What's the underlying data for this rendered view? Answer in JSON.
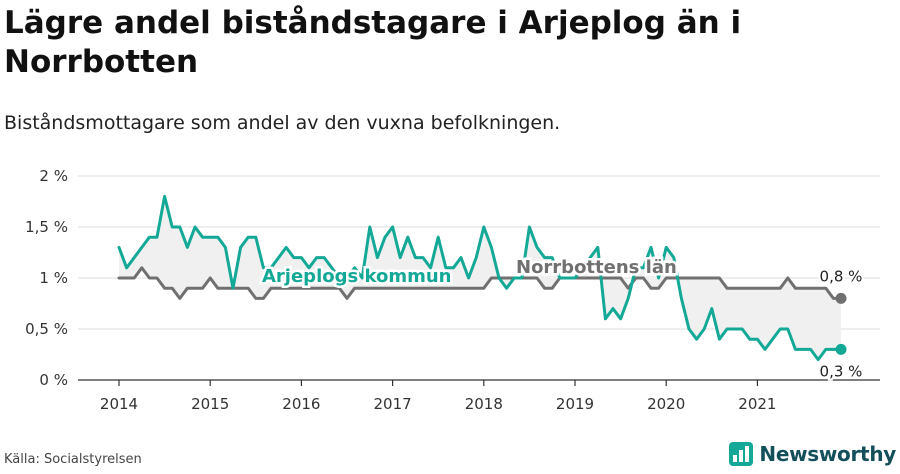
{
  "header": {
    "title": "Lägre andel biståndstagare i Arjeplog än i Norrbotten",
    "subtitle": "Biståndsmottagare som andel av den vuxna befolkningen."
  },
  "footer": {
    "source": "Källa: Socialstyrelsen",
    "brand": "Newsworthy"
  },
  "colors": {
    "arjeplog": "#14a897",
    "norrbotten": "#707070",
    "band": "#f0f0f0",
    "grid": "#dcdcdc"
  },
  "chart_data": {
    "type": "line",
    "title": "Lägre andel biståndstagare i Arjeplog än i Norrbotten",
    "subtitle": "Biståndsmottagare som andel av den vuxna befolkningen.",
    "ylim": [
      0,
      2
    ],
    "y_ticks": [
      0,
      0.5,
      1,
      1.5,
      2
    ],
    "y_tick_labels": [
      "0 %",
      "0,5 %",
      "1 %",
      "1,5 %",
      "2 %"
    ],
    "x_ticks": [
      2014,
      2015,
      2016,
      2017,
      2018,
      2019,
      2020,
      2021
    ],
    "x_tick_labels": [
      "2014",
      "2015",
      "2016",
      "2017",
      "2018",
      "2019",
      "2020",
      "2021"
    ],
    "x_start": "2014-01",
    "x_end": "2021-10",
    "grid": true,
    "series": [
      {
        "name": "Arjeplogs kommun",
        "color": "#14a897",
        "last_label": "0,3 %",
        "values": [
          1.3,
          1.1,
          1.2,
          1.3,
          1.4,
          1.4,
          1.8,
          1.5,
          1.5,
          1.3,
          1.5,
          1.4,
          1.4,
          1.4,
          1.3,
          0.9,
          1.3,
          1.4,
          1.4,
          1.1,
          1.1,
          1.2,
          1.3,
          1.2,
          1.2,
          1.1,
          1.2,
          1.2,
          1.1,
          1.0,
          1.0,
          1.1,
          1.0,
          1.5,
          1.2,
          1.4,
          1.5,
          1.2,
          1.4,
          1.2,
          1.2,
          1.1,
          1.4,
          1.1,
          1.1,
          1.2,
          1.0,
          1.2,
          1.5,
          1.3,
          1.0,
          0.9,
          1.0,
          1.0,
          1.5,
          1.3,
          1.2,
          1.2,
          1.0,
          1.0,
          1.0,
          1.1,
          1.2,
          1.3,
          0.6,
          0.7,
          0.6,
          0.8,
          1.1,
          1.1,
          1.3,
          1.0,
          1.3,
          1.2,
          0.8,
          0.5,
          0.4,
          0.5,
          0.7,
          0.4,
          0.5,
          0.5,
          0.5,
          0.4,
          0.4,
          0.3,
          0.4,
          0.5,
          0.5,
          0.3,
          0.3,
          0.3,
          0.2,
          0.3,
          0.3,
          0.3
        ]
      },
      {
        "name": "Norrbottens län",
        "color": "#707070",
        "last_label": "0,8 %",
        "values": [
          1.0,
          1.0,
          1.0,
          1.1,
          1.0,
          1.0,
          0.9,
          0.9,
          0.8,
          0.9,
          0.9,
          0.9,
          1.0,
          0.9,
          0.9,
          0.9,
          0.9,
          0.9,
          0.8,
          0.8,
          0.9,
          0.9,
          0.9,
          0.9,
          0.9,
          0.9,
          0.9,
          0.9,
          0.9,
          0.9,
          0.8,
          0.9,
          0.9,
          0.9,
          0.9,
          0.9,
          0.9,
          0.9,
          0.9,
          0.9,
          0.9,
          0.9,
          0.9,
          0.9,
          0.9,
          0.9,
          0.9,
          0.9,
          0.9,
          1.0,
          1.0,
          1.0,
          1.0,
          1.0,
          1.0,
          1.0,
          0.9,
          0.9,
          1.0,
          1.0,
          1.0,
          1.0,
          1.0,
          1.0,
          1.0,
          1.0,
          1.0,
          0.9,
          1.0,
          1.0,
          0.9,
          0.9,
          1.0,
          1.0,
          1.0,
          1.0,
          1.0,
          1.0,
          1.0,
          1.0,
          0.9,
          0.9,
          0.9,
          0.9,
          0.9,
          0.9,
          0.9,
          0.9,
          1.0,
          0.9,
          0.9,
          0.9,
          0.9,
          0.9,
          0.8,
          0.8
        ]
      }
    ]
  }
}
